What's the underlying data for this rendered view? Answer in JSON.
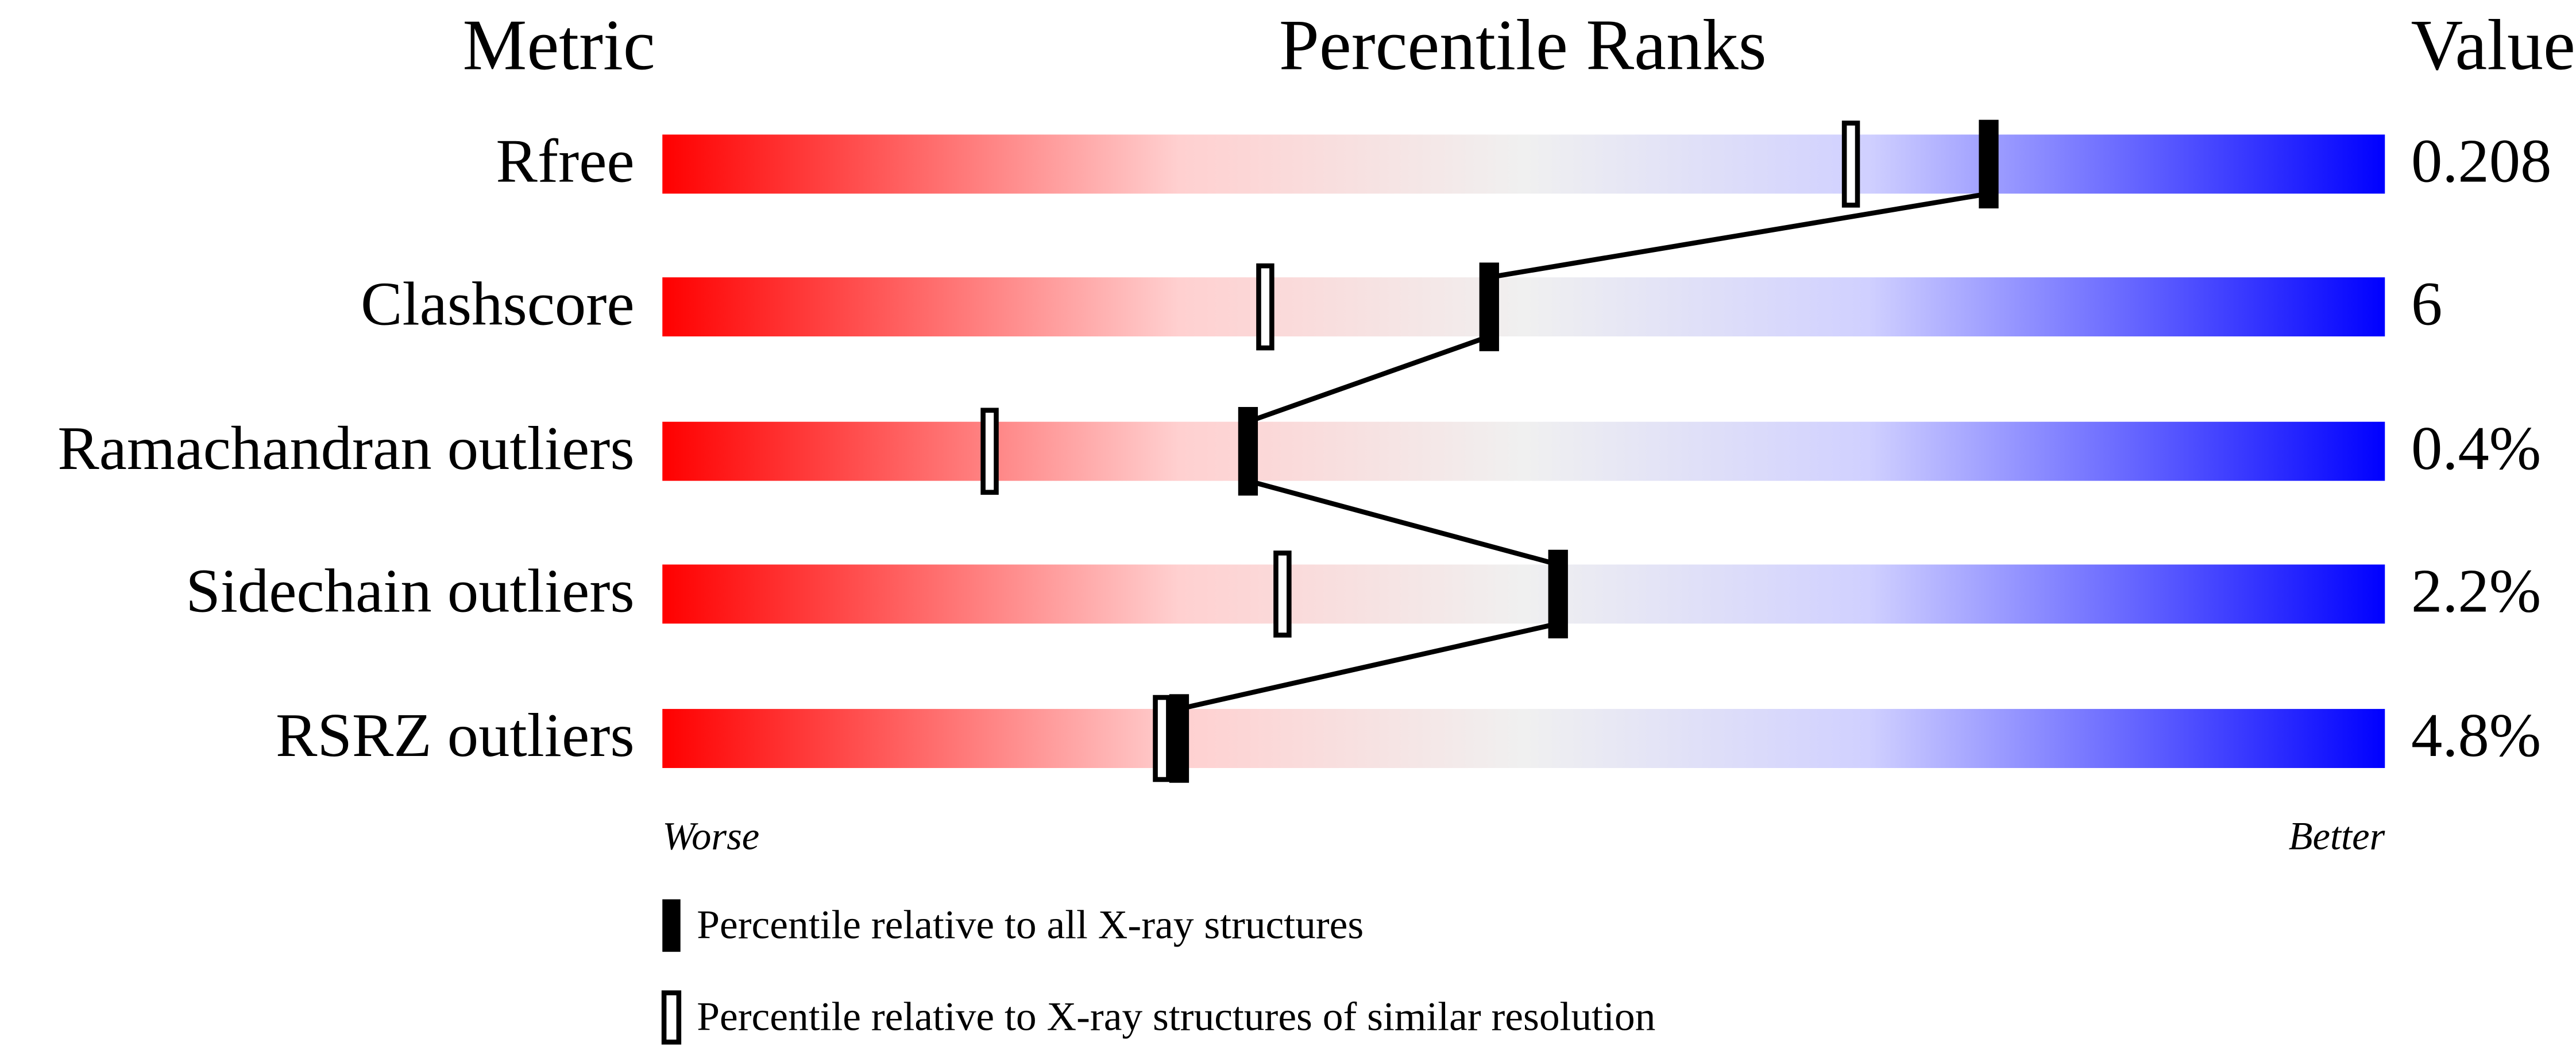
{
  "chart_data": {
    "type": "bar",
    "title": "Percentile Ranks",
    "headers": {
      "metric": "Metric",
      "percentile": "Percentile Ranks",
      "value": "Value"
    },
    "xlim": [
      0,
      100
    ],
    "axis_labels": {
      "left": "Worse",
      "right": "Better"
    },
    "gradient_colors": [
      "#ff0000",
      "#ffd0d0",
      "#f0f0f0",
      "#d0d0ff",
      "#0000ff"
    ],
    "metrics": [
      {
        "name": "Rfree",
        "value": "0.208",
        "percentile_all": 77,
        "percentile_similar": 69
      },
      {
        "name": "Clashscore",
        "value": "6",
        "percentile_all": 48,
        "percentile_similar": 35
      },
      {
        "name": "Ramachandran outliers",
        "value": "0.4%",
        "percentile_all": 34,
        "percentile_similar": 19
      },
      {
        "name": "Sidechain outliers",
        "value": "2.2%",
        "percentile_all": 52,
        "percentile_similar": 36
      },
      {
        "name": "RSRZ outliers",
        "value": "4.8%",
        "percentile_all": 30,
        "percentile_similar": 29
      }
    ],
    "legend": [
      {
        "marker": "filled",
        "label": "Percentile relative to all X-ray structures"
      },
      {
        "marker": "open",
        "label": "Percentile relative to X-ray structures of similar resolution"
      }
    ]
  }
}
